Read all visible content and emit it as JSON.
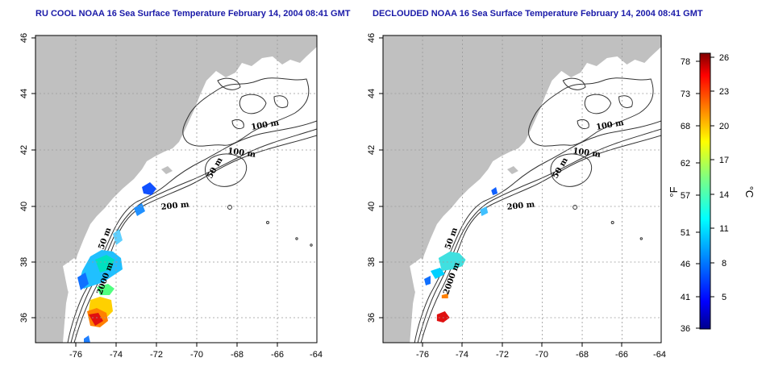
{
  "panels": [
    {
      "id": "left",
      "title": "RU COOL NOAA 16 Sea Surface Temperature February 14, 2004 08:41 GMT",
      "contour_labels": [
        "100 m",
        "100 m",
        "50 m",
        "200 m",
        "50 m",
        "2000 m"
      ]
    },
    {
      "id": "right",
      "title": "DECLOUDED NOAA 16 Sea Surface Temperature February 14, 2004 08:41 GMT",
      "contour_labels": [
        "100 m",
        "100 m",
        "50 m",
        "200 m",
        "50 m",
        "2000 m"
      ]
    }
  ],
  "map_axes": {
    "x_ticks": [
      "-76",
      "-74",
      "-72",
      "-70",
      "-68",
      "-66",
      "-64"
    ],
    "y_ticks": [
      "36",
      "38",
      "40",
      "42",
      "44",
      "46"
    ],
    "lon_range": [
      -77.0,
      -63.0
    ],
    "lat_range": [
      35.0,
      46.0
    ],
    "grid": true
  },
  "colorbar": {
    "fahrenheit_ticks": [
      "78",
      "73",
      "68",
      "62",
      "57",
      "51",
      "46",
      "41",
      "36"
    ],
    "celsius_ticks": [
      "26",
      "23",
      "20",
      "17",
      "14",
      "11",
      "8",
      "5"
    ],
    "fahrenheit_label": "°F",
    "celsius_label": "°C",
    "colors": [
      "#00008c",
      "#0000ff",
      "#0080ff",
      "#00ffff",
      "#80ff80",
      "#ffff00",
      "#ff8000",
      "#ff0000",
      "#800000"
    ]
  },
  "colors": {
    "land": "#c0c0c0",
    "contour": "#333333",
    "title": "#1a1aa8"
  }
}
